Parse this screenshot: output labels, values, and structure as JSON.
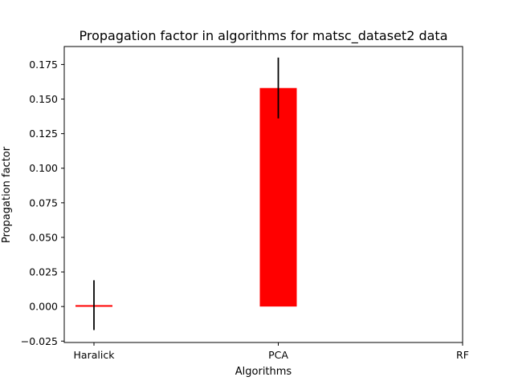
{
  "chart_data": {
    "type": "bar",
    "title": "Propagation factor in algorithms for matsc_dataset2 data",
    "xlabel": "Algorithms",
    "ylabel": "Propagation factor",
    "categories": [
      "Haralick",
      "PCA",
      "RF"
    ],
    "values": [
      0.001,
      0.158,
      0.0
    ],
    "errors": [
      0.018,
      0.022,
      0.0
    ],
    "ylim": [
      -0.026,
      0.188
    ],
    "yticks": [
      -0.025,
      0.0,
      0.025,
      0.05,
      0.075,
      0.1,
      0.125,
      0.15,
      0.175
    ],
    "ytick_labels": [
      "−0.025",
      "0.000",
      "0.025",
      "0.050",
      "0.075",
      "0.100",
      "0.125",
      "0.150",
      "0.175"
    ],
    "bar_color": "#ff0000",
    "error_color": "#000000",
    "grid": false,
    "legend": "none"
  }
}
